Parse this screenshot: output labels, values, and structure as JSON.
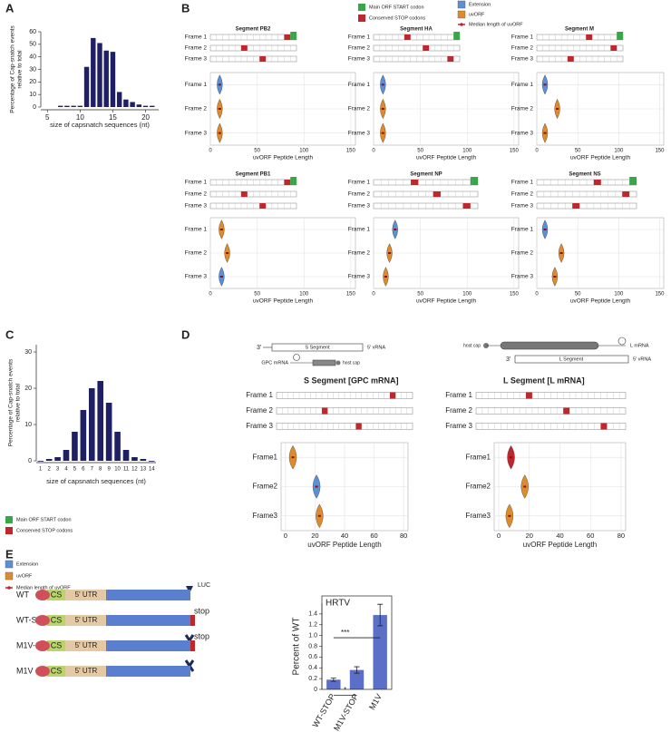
{
  "panel_labels": [
    "A",
    "B",
    "C",
    "D",
    "E"
  ],
  "legend_b": [
    {
      "label": "Main ORF START codon",
      "color": "#3aa64a"
    },
    {
      "label": "Conserved STOP codons",
      "color": "#c0272d"
    },
    {
      "label": "Extension",
      "color": "#5b8fd6"
    },
    {
      "label": "uvORF",
      "color": "#e08b2b"
    },
    {
      "label": "Median length of uvORF",
      "color": "#c0272d"
    }
  ],
  "legend_d": [
    {
      "label": "Main ORF START codon",
      "color": "#3aa64a"
    },
    {
      "label": "Conserved STOP codons",
      "color": "#c0272d"
    },
    {
      "label": "Extension",
      "color": "#5b8fd6"
    },
    {
      "label": "uvORF",
      "color": "#e08b2b"
    },
    {
      "label": "Median length of uvORF",
      "color": "#c0272d"
    }
  ],
  "diagram_d": {
    "s_3": "3'",
    "s_segment": "S Segment",
    "s_5": "5' vRNA",
    "gpc_mrna": "GPC mRNA",
    "s_host_cap": "host cap",
    "l_host_cap": "host cap",
    "l_mrna": "L mRNA",
    "l_3": "3'",
    "l_segment": "L Segment",
    "l_5": "5' vRNA"
  },
  "diagram_e": {
    "constructs": [
      "WT",
      "WT-STOP",
      "M1V-STOP",
      "M1V"
    ],
    "cs": "CS",
    "utr": "5' UTR",
    "luc": "LUC",
    "stop": "stop"
  },
  "chart_data": [
    {
      "type": "bar",
      "x": [
        7,
        8,
        9,
        10,
        11,
        12,
        13,
        14,
        15,
        16,
        17,
        18,
        19,
        20,
        21
      ],
      "values": [
        1,
        1,
        1,
        1,
        32,
        55,
        51,
        45,
        44,
        12,
        6,
        4,
        2,
        1,
        1
      ],
      "color": "#1f1f66",
      "xlim": [
        4,
        22
      ],
      "xticks": [
        5,
        10,
        15,
        20
      ],
      "ylim": [
        0,
        60
      ],
      "yticks": [
        0,
        10,
        20,
        30,
        40,
        50,
        60
      ],
      "xlabel": "size of capsnatch sequences (nt)",
      "ylabel": [
        "Percentage of Cap-snatch events",
        "relative to total"
      ]
    },
    {
      "type": "bar",
      "categories": [
        "1",
        "2",
        "3",
        "4",
        "5",
        "6",
        "7",
        "8",
        "9",
        "10",
        "11",
        "12",
        "13",
        "14"
      ],
      "values": [
        0,
        0.5,
        1,
        3,
        8,
        14,
        20,
        22,
        16,
        8,
        3,
        1,
        0.5,
        0
      ],
      "color": "#1f1f66",
      "ylim": [
        0,
        32
      ],
      "yticks": [
        0,
        10,
        20,
        30
      ],
      "xlabel": "size of capsnatch sequences (nt)",
      "ylabel": [
        "Percentage of Cap-snatch events",
        "relative to total"
      ]
    },
    {
      "type": "violin",
      "title": "Segment PB2",
      "categories": [
        "Frame 1",
        "Frame 2",
        "Frame 3"
      ],
      "values": [
        10,
        10,
        10
      ],
      "colors": [
        "#5b8fd6",
        "#e08b2b",
        "#e08b2b"
      ],
      "xlim": [
        0,
        155
      ],
      "xticks": [
        0,
        50,
        100,
        150
      ],
      "xlabel": "uvORF Peptide Length",
      "grid": true
    },
    {
      "type": "violin",
      "title": "Segment HA",
      "categories": [
        "Frame 1",
        "Frame 2",
        "Frame 3"
      ],
      "values": [
        10,
        10,
        10
      ],
      "colors": [
        "#5b8fd6",
        "#e08b2b",
        "#e08b2b"
      ],
      "xlim": [
        0,
        155
      ],
      "xticks": [
        0,
        50,
        100,
        150
      ],
      "xlabel": "uvORF Peptide Length",
      "grid": true
    },
    {
      "type": "violin",
      "title": "Segment M",
      "categories": [
        "Frame 1",
        "Frame 2",
        "Frame 3"
      ],
      "values": [
        10,
        25,
        10
      ],
      "colors": [
        "#5b8fd6",
        "#e08b2b",
        "#e08b2b"
      ],
      "xlim": [
        0,
        155
      ],
      "xticks": [
        0,
        50,
        100,
        150
      ],
      "xlabel": "uvORF Peptide Length",
      "grid": true
    },
    {
      "type": "violin",
      "title": "Segment PB1",
      "categories": [
        "Frame 1",
        "Frame 2",
        "Frame 3"
      ],
      "values": [
        12,
        18,
        12
      ],
      "colors": [
        "#e08b2b",
        "#e08b2b",
        "#5b8fd6"
      ],
      "xlim": [
        0,
        155
      ],
      "xticks": [
        0,
        50,
        100,
        150
      ],
      "xlabel": "uvORF Peptide Length",
      "grid": true
    },
    {
      "type": "violin",
      "title": "Segment NP",
      "categories": [
        "Frame 1",
        "Frame 2",
        "Frame 3"
      ],
      "values": [
        23,
        17,
        13
      ],
      "colors": [
        "#5b8fd6",
        "#e08b2b",
        "#e08b2b"
      ],
      "xlim": [
        0,
        155
      ],
      "xticks": [
        0,
        50,
        100,
        150
      ],
      "xlabel": "uvORF Peptide Length",
      "grid": true
    },
    {
      "type": "violin",
      "title": "Segment NS",
      "categories": [
        "Frame 1",
        "Frame 2",
        "Frame 3"
      ],
      "values": [
        10,
        30,
        22
      ],
      "colors": [
        "#5b8fd6",
        "#e08b2b",
        "#e08b2b"
      ],
      "xlim": [
        0,
        155
      ],
      "xticks": [
        0,
        50,
        100,
        150
      ],
      "xlabel": "uvORF Peptide Length",
      "grid": true
    },
    {
      "type": "violin",
      "title": "S Segment [GPC mRNA]",
      "strip_labels": [
        "Frame 1",
        "Frame 2",
        "Frame 3"
      ],
      "categories": [
        "Frame1",
        "Frame2",
        "Frame3"
      ],
      "values": [
        5,
        21,
        23
      ],
      "colors": [
        "#e08b2b",
        "#5b8fd6",
        "#e08b2b"
      ],
      "xlim": [
        -3,
        83
      ],
      "xticks": [
        0,
        20,
        40,
        60,
        80
      ],
      "xlabel": "uvORF Peptide Length",
      "grid": true
    },
    {
      "type": "violin",
      "title": "L Segment [L mRNA]",
      "strip_labels": [
        "Frame 1",
        "Frame 2",
        "Frame 3"
      ],
      "categories": [
        "Frame1",
        "Frame2",
        "Frame3"
      ],
      "values": [
        8,
        17,
        7
      ],
      "colors": [
        "#c0272d",
        "#e08b2b",
        "#e08b2b"
      ],
      "xlim": [
        -3,
        83
      ],
      "xticks": [
        0,
        20,
        40,
        60,
        80
      ],
      "xlabel": "uvORF Peptide Length",
      "grid": true
    },
    {
      "type": "bar",
      "title": "HRTV",
      "categories": [
        "WT-STOP",
        "M1V-STOP",
        "M1V"
      ],
      "values": [
        0.18,
        0.36,
        1.38
      ],
      "errors": [
        0.03,
        0.06,
        0.2
      ],
      "color": "#5b6fc8",
      "ylim": [
        0,
        1.6
      ],
      "yticks": [
        0,
        0.2,
        0.4,
        0.6,
        0.8,
        {
          "value": 1,
          "label": "1.0"
        },
        1.2,
        1.4
      ],
      "ylabel": "Percent of WT",
      "significance": [
        "***",
        "*"
      ]
    }
  ]
}
